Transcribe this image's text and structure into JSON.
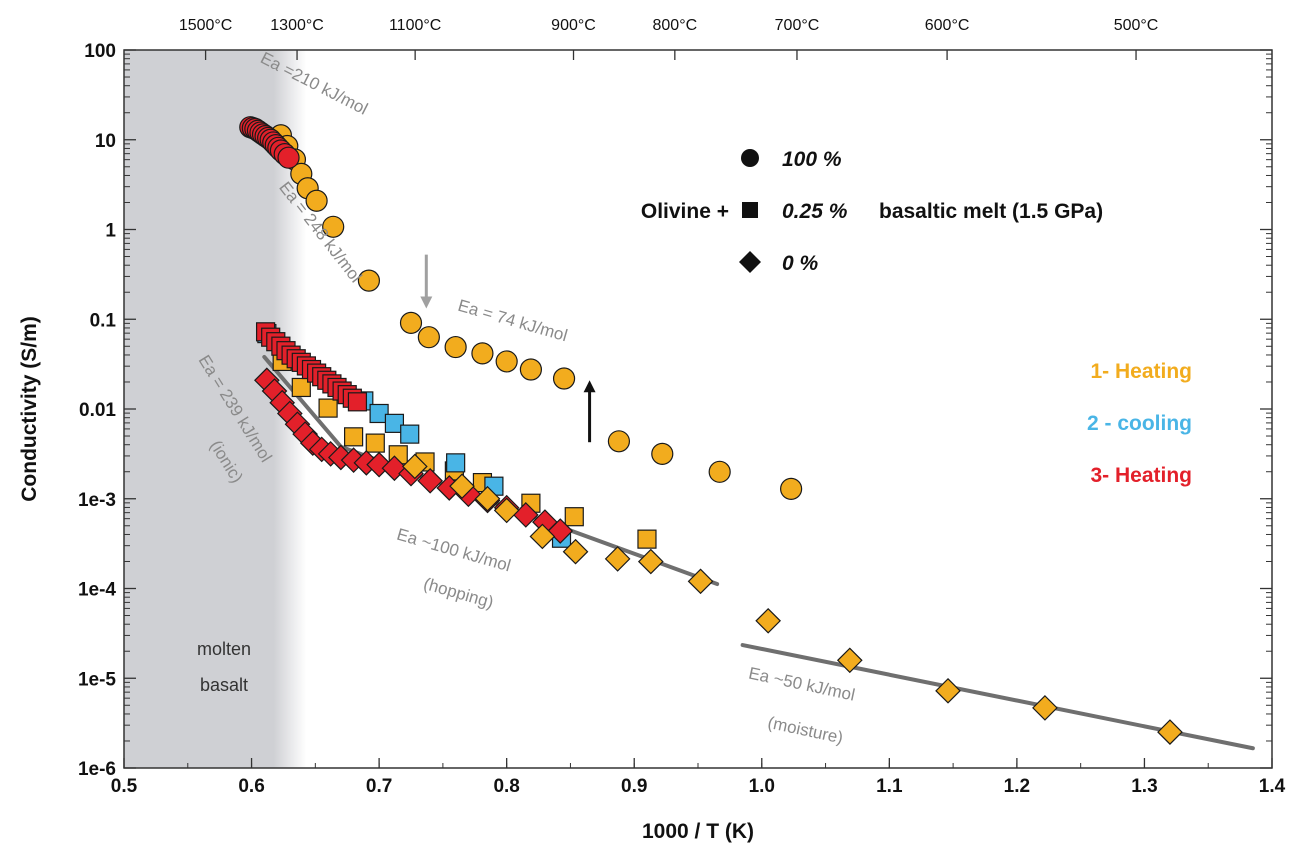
{
  "chart_data": {
    "type": "scatter",
    "xlabel": "1000 / T (K)",
    "ylabel": "Conductivity (S/m)",
    "xlim": [
      0.5,
      1.4
    ],
    "ylim_log10": [
      -6,
      2
    ],
    "y_scale": "log",
    "x_ticks": [
      {
        "v": 0.5,
        "label": "0.5"
      },
      {
        "v": 0.6,
        "label": "0.6"
      },
      {
        "v": 0.7,
        "label": "0.7"
      },
      {
        "v": 0.8,
        "label": "0.8"
      },
      {
        "v": 0.9,
        "label": "0.9"
      },
      {
        "v": 1.0,
        "label": "1.0"
      },
      {
        "v": 1.1,
        "label": "1.1"
      },
      {
        "v": 1.2,
        "label": "1.2"
      },
      {
        "v": 1.3,
        "label": "1.3"
      },
      {
        "v": 1.4,
        "label": "1.4"
      }
    ],
    "y_ticks": [
      {
        "e": 2,
        "label": "100"
      },
      {
        "e": 1,
        "label": "10"
      },
      {
        "e": 0,
        "label": "1"
      },
      {
        "e": -1,
        "label": "0.1"
      },
      {
        "e": -2,
        "label": "0.01"
      },
      {
        "e": -3,
        "label": "1e-3"
      },
      {
        "e": -4,
        "label": "1e-4"
      },
      {
        "e": -5,
        "label": "1e-5"
      },
      {
        "e": -6,
        "label": "1e-6"
      }
    ],
    "top_axis": [
      {
        "c": 1500,
        "label": "1500°C"
      },
      {
        "c": 1300,
        "label": "1300°C"
      },
      {
        "c": 1100,
        "label": "1100°C"
      },
      {
        "c": 900,
        "label": "900°C"
      },
      {
        "c": 800,
        "label": "800°C"
      },
      {
        "c": 700,
        "label": "700°C"
      },
      {
        "c": 600,
        "label": "600°C"
      },
      {
        "c": 500,
        "label": "500°C"
      }
    ],
    "shaded_region": {
      "x_end": 0.643,
      "label_lines": [
        "molten",
        "basalt"
      ]
    },
    "colors": {
      "heating1": "#f2ac1e",
      "cooling2": "#49b5e6",
      "heating3": "#e3202a",
      "fit_line": "#6f6f6f",
      "annotation": "#8a8a8a",
      "shade": "#cfd0d4"
    },
    "legend": {
      "prefix": "Olivine +",
      "suffix": "basaltic melt (1.5 GPa)",
      "entries": [
        {
          "marker": "circle",
          "label": "100 %"
        },
        {
          "marker": "square",
          "label": "0.25 %"
        },
        {
          "marker": "diamond",
          "label": "0 %"
        }
      ]
    },
    "stage_labels": [
      {
        "label": "1- Heating",
        "color": "#f2ac1e"
      },
      {
        "label": "2 - cooling",
        "color": "#49b5e6"
      },
      {
        "label": "3- Heating",
        "color": "#e3202a"
      }
    ],
    "annotations": [
      {
        "text": "Ea =210 kJ/mol",
        "x": 0.606,
        "y": 1.87,
        "rot": 27
      },
      {
        "text": "Ea = 248 kJ/mol",
        "x": 0.621,
        "y": 0.47,
        "rot": 52
      },
      {
        "text": "Ea = 74 kJ/mol",
        "x": 0.761,
        "y": -0.9,
        "rot": 16
      },
      {
        "text": "Ea = 239 kJ/mol",
        "x": 0.558,
        "y": -1.45,
        "rot": 58
      },
      {
        "text": "(ionic)",
        "x": 0.567,
        "y": -2.4,
        "rot": 58
      },
      {
        "text": "Ea ~100 kJ/mol",
        "x": 0.713,
        "y": -3.45,
        "rot": 16
      },
      {
        "text": "(hopping)",
        "x": 0.734,
        "y": -4.0,
        "rot": 16
      },
      {
        "text": "Ea ~50 kJ/mol",
        "x": 0.989,
        "y": -5.0,
        "rot": 12
      },
      {
        "text": "(moisture)",
        "x": 1.004,
        "y": -5.55,
        "rot": 12
      }
    ],
    "fit_lines": [
      {
        "name": "Ea ~100 kJ/mol (hopping)",
        "points": [
          [
            0.61,
            -1.42
          ],
          [
            0.67,
            -2.42
          ],
          [
            0.965,
            -3.95
          ]
        ]
      },
      {
        "name": "Ea ~50 kJ/mol (moisture)",
        "points": [
          [
            0.985,
            -4.63
          ],
          [
            1.385,
            -5.78
          ]
        ]
      }
    ],
    "arrows": [
      {
        "color": "#a0a0a0",
        "x": 0.737,
        "y_from": -0.28,
        "y_to": -0.88
      },
      {
        "color": "#111111",
        "x": 0.865,
        "y_from": -2.37,
        "y_to": -1.68
      }
    ],
    "series": [
      {
        "name": "100 % 1- Heating",
        "marker": "circle",
        "color": "#f2ac1e",
        "points": [
          [
            0.623,
            1.05
          ],
          [
            0.628,
            0.93
          ],
          [
            0.634,
            0.78
          ],
          [
            0.639,
            0.62
          ],
          [
            0.644,
            0.46
          ],
          [
            0.651,
            0.32
          ],
          [
            0.664,
            0.03
          ],
          [
            0.692,
            -0.57
          ],
          [
            0.725,
            -1.04
          ],
          [
            0.739,
            -1.2
          ],
          [
            0.76,
            -1.31
          ],
          [
            0.781,
            -1.38
          ],
          [
            0.8,
            -1.47
          ],
          [
            0.819,
            -1.56
          ],
          [
            0.845,
            -1.66
          ],
          [
            0.888,
            -2.36
          ],
          [
            0.922,
            -2.5
          ],
          [
            0.967,
            -2.7
          ],
          [
            1.023,
            -2.89
          ]
        ]
      },
      {
        "name": "100 % 3- Heating",
        "marker": "circle",
        "color": "#e3202a",
        "points": [
          [
            0.599,
            1.14
          ],
          [
            0.601,
            1.13
          ],
          [
            0.603,
            1.12
          ],
          [
            0.605,
            1.1
          ],
          [
            0.607,
            1.08
          ],
          [
            0.609,
            1.06
          ],
          [
            0.611,
            1.04
          ],
          [
            0.613,
            1.02
          ],
          [
            0.615,
            1.0
          ],
          [
            0.617,
            0.97
          ],
          [
            0.619,
            0.94
          ],
          [
            0.621,
            0.91
          ],
          [
            0.623,
            0.88
          ],
          [
            0.626,
            0.84
          ],
          [
            0.629,
            0.8
          ]
        ]
      },
      {
        "name": "0.25 % 1- Heating",
        "marker": "square",
        "color": "#f2ac1e",
        "points": [
          [
            0.624,
            -1.47
          ],
          [
            0.639,
            -1.76
          ],
          [
            0.66,
            -1.99
          ],
          [
            0.68,
            -2.31
          ],
          [
            0.697,
            -2.38
          ],
          [
            0.715,
            -2.51
          ],
          [
            0.736,
            -2.59
          ],
          [
            0.759,
            -2.69
          ],
          [
            0.781,
            -2.82
          ],
          [
            0.819,
            -3.05
          ],
          [
            0.853,
            -3.2
          ],
          [
            0.91,
            -3.45
          ]
        ]
      },
      {
        "name": "0.25 % 2 - cooling",
        "marker": "square",
        "color": "#49b5e6",
        "points": [
          [
            0.612,
            -1.16
          ],
          [
            0.688,
            -1.91
          ],
          [
            0.7,
            -2.05
          ],
          [
            0.712,
            -2.16
          ],
          [
            0.724,
            -2.28
          ],
          [
            0.76,
            -2.6
          ],
          [
            0.79,
            -2.86
          ],
          [
            0.843,
            -3.44
          ]
        ]
      },
      {
        "name": "0.25 % 3- Heating",
        "marker": "square",
        "color": "#e3202a",
        "points": [
          [
            0.611,
            -1.14
          ],
          [
            0.615,
            -1.2
          ],
          [
            0.619,
            -1.25
          ],
          [
            0.623,
            -1.3
          ],
          [
            0.627,
            -1.35
          ],
          [
            0.631,
            -1.4
          ],
          [
            0.635,
            -1.44
          ],
          [
            0.639,
            -1.48
          ],
          [
            0.643,
            -1.52
          ],
          [
            0.647,
            -1.56
          ],
          [
            0.651,
            -1.6
          ],
          [
            0.655,
            -1.64
          ],
          [
            0.659,
            -1.68
          ],
          [
            0.663,
            -1.72
          ],
          [
            0.667,
            -1.76
          ],
          [
            0.671,
            -1.8
          ],
          [
            0.675,
            -1.84
          ],
          [
            0.679,
            -1.88
          ],
          [
            0.683,
            -1.92
          ]
        ]
      },
      {
        "name": "0 % 3- Heating",
        "marker": "diamond",
        "color": "#e3202a",
        "points": [
          [
            0.612,
            -1.68
          ],
          [
            0.618,
            -1.8
          ],
          [
            0.624,
            -1.93
          ],
          [
            0.63,
            -2.05
          ],
          [
            0.636,
            -2.17
          ],
          [
            0.642,
            -2.28
          ],
          [
            0.648,
            -2.38
          ],
          [
            0.655,
            -2.45
          ],
          [
            0.662,
            -2.5
          ],
          [
            0.67,
            -2.54
          ],
          [
            0.68,
            -2.57
          ],
          [
            0.69,
            -2.6
          ],
          [
            0.7,
            -2.62
          ],
          [
            0.712,
            -2.66
          ],
          [
            0.725,
            -2.72
          ],
          [
            0.74,
            -2.8
          ],
          [
            0.755,
            -2.88
          ],
          [
            0.77,
            -2.95
          ],
          [
            0.785,
            -3.02
          ],
          [
            0.8,
            -3.1
          ],
          [
            0.815,
            -3.18
          ],
          [
            0.83,
            -3.26
          ],
          [
            0.842,
            -3.36
          ]
        ]
      },
      {
        "name": "0 % 1- Heating",
        "marker": "diamond",
        "color": "#f2ac1e",
        "points": [
          [
            0.728,
            -2.64
          ],
          [
            0.765,
            -2.86
          ],
          [
            0.785,
            -3.0
          ],
          [
            0.8,
            -3.13
          ],
          [
            0.828,
            -3.42
          ],
          [
            0.854,
            -3.59
          ],
          [
            0.887,
            -3.67
          ],
          [
            0.913,
            -3.7
          ],
          [
            0.952,
            -3.92
          ],
          [
            1.005,
            -4.36
          ],
          [
            1.069,
            -4.8
          ],
          [
            1.146,
            -5.14
          ],
          [
            1.222,
            -5.33
          ],
          [
            1.32,
            -5.6
          ]
        ]
      }
    ]
  }
}
